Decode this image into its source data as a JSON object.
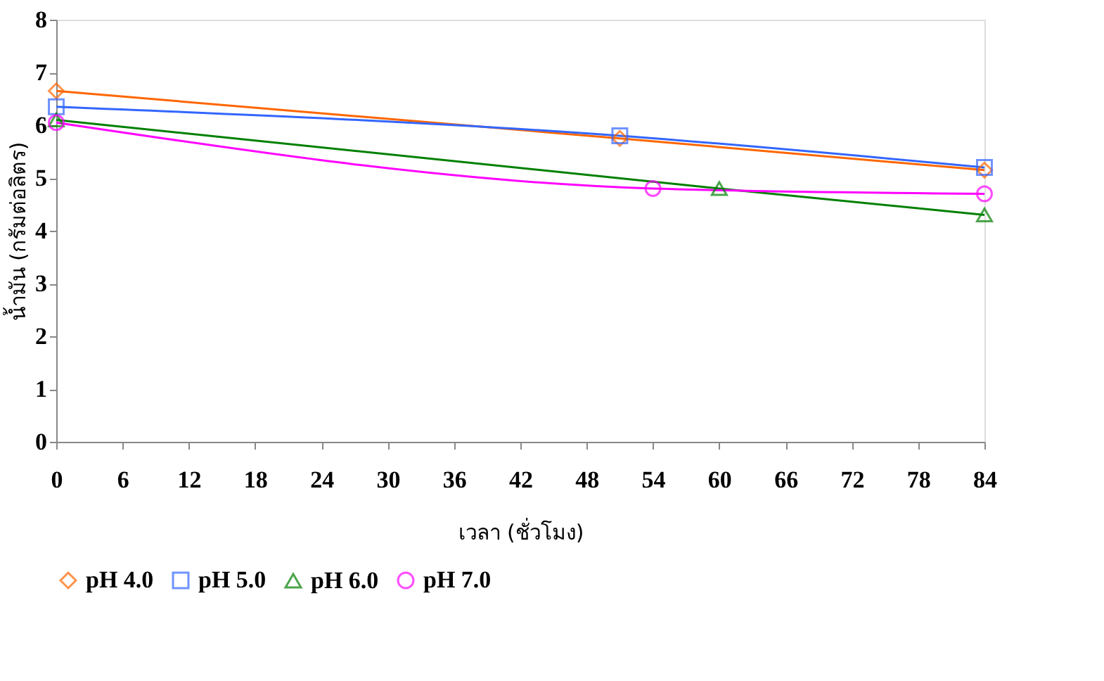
{
  "chart_data": {
    "type": "line",
    "xlabel": "เวลา (ชั่วโมง)",
    "ylabel": "น้ำมัน (กรัมต่อลิตร)",
    "xlim": [
      0,
      84
    ],
    "xticks": [
      0,
      6,
      12,
      18,
      24,
      30,
      36,
      42,
      48,
      54,
      60,
      66,
      72,
      78,
      84
    ],
    "ylim": [
      0,
      8
    ],
    "yticks": [
      0,
      1,
      2,
      3,
      4,
      5,
      6,
      7,
      8
    ],
    "grid": false,
    "legend": "bottom",
    "series": [
      {
        "name": "pH 4.0",
        "color": "#ff6600",
        "marker": "diamond",
        "x": [
          0,
          51,
          84
        ],
        "values": [
          6.65,
          5.75,
          5.15
        ]
      },
      {
        "name": "pH 5.0",
        "color": "#3366ff",
        "marker": "square",
        "x": [
          0,
          51,
          84
        ],
        "values": [
          6.35,
          5.8,
          5.2
        ]
      },
      {
        "name": "pH 6.0",
        "color": "#008000",
        "marker": "triangle",
        "x": [
          0,
          60,
          84
        ],
        "values": [
          6.1,
          4.8,
          4.3
        ]
      },
      {
        "name": "pH 7.0",
        "color": "#ff00ff",
        "marker": "circle",
        "x": [
          0,
          54,
          84
        ],
        "values": [
          6.05,
          4.8,
          4.7
        ]
      }
    ]
  }
}
